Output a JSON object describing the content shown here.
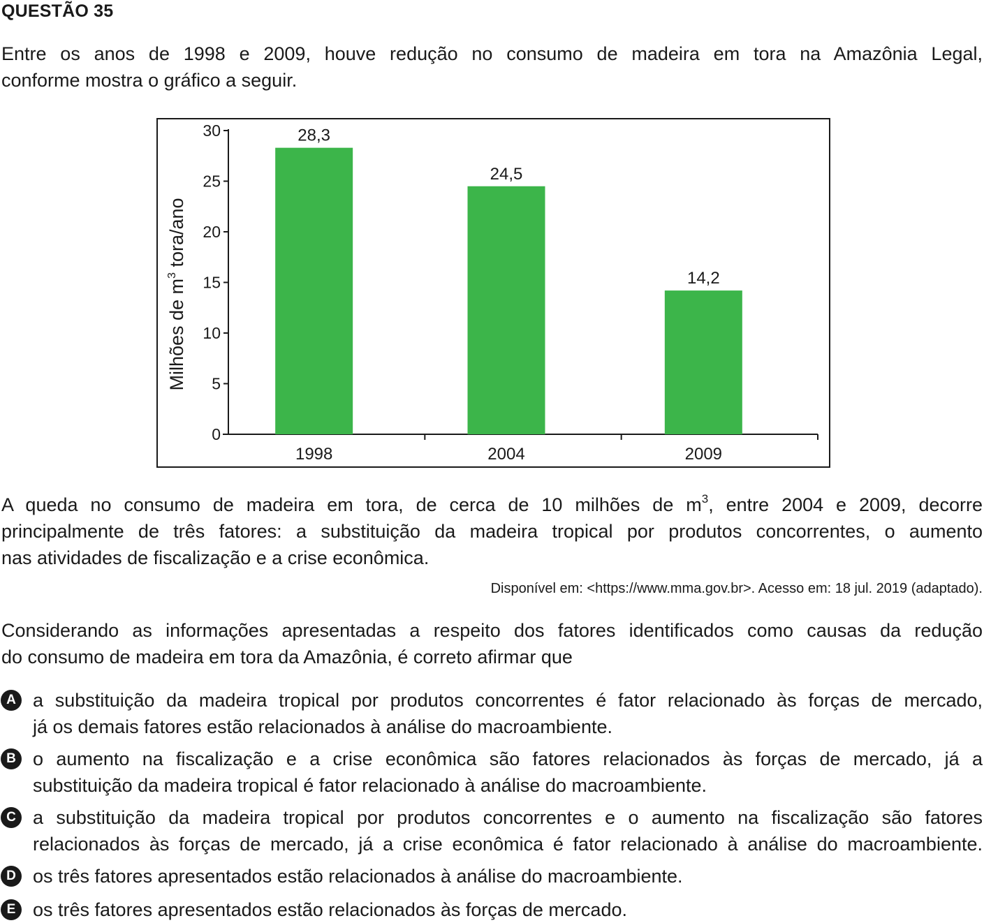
{
  "question": {
    "title": "QUESTÃO 35",
    "intro_lines": [
      "Entre os anos de 1998 e 2009, houve redução no consumo de madeira em tora na Amazônia Legal,",
      "conforme mostra o gráfico a seguir."
    ]
  },
  "chart_data": {
    "type": "bar",
    "categories": [
      "1998",
      "2004",
      "2009"
    ],
    "values": [
      28.3,
      24.5,
      14.2
    ],
    "value_labels": [
      "28,3",
      "24,5",
      "14,2"
    ],
    "ylabel_main": "Milhões de m",
    "ylabel_sup": "3",
    "ylabel_tail": " tora/ano",
    "ylim": [
      0,
      30
    ],
    "yticks": [
      0,
      5,
      10,
      15,
      20,
      25,
      30
    ],
    "ytick_labels": [
      "0",
      "5",
      "10",
      "15",
      "20",
      "25",
      "30"
    ],
    "bar_color": "#3cb54a",
    "grid": false
  },
  "body": {
    "line1_pre": "A queda no consumo de madeira em tora, de cerca de 10 milhões de m",
    "line1_sup": "3",
    "line1_post": ", entre 2004 e 2009, decorre",
    "line2": "principalmente de três fatores: a substituição da madeira tropical por produtos concorrentes, o aumento",
    "line3": "nas atividades de fiscalização e a crise econômica.",
    "source": "Disponível em: <https://www.mma.gov.br>. Acesso em: 18 jul. 2019 (adaptado).",
    "prompt_lines": [
      "Considerando as informações apresentadas a respeito dos fatores identificados como causas da redução",
      "do consumo de madeira em tora da Amazônia, é correto afirmar que"
    ]
  },
  "options": [
    {
      "letter": "A",
      "lines": [
        "a substituição da madeira tropical por produtos concorrentes é fator relacionado às forças de mercado,",
        "já os demais fatores estão relacionados à análise do macroambiente."
      ]
    },
    {
      "letter": "B",
      "lines": [
        "o aumento na fiscalização e a crise econômica são fatores relacionados às forças de mercado, já a",
        "substituição da madeira tropical é fator relacionado à análise do macroambiente."
      ]
    },
    {
      "letter": "C",
      "lines": [
        "a substituição da madeira tropical por produtos concorrentes e o aumento na fiscalização são fatores",
        "relacionados às forças de mercado, já a crise econômica é fator relacionado à análise do macroambiente."
      ]
    },
    {
      "letter": "D",
      "lines": [
        "os três fatores apresentados estão relacionados à análise do macroambiente."
      ]
    },
    {
      "letter": "E",
      "lines": [
        "os três fatores apresentados estão relacionados às forças de mercado."
      ]
    }
  ]
}
